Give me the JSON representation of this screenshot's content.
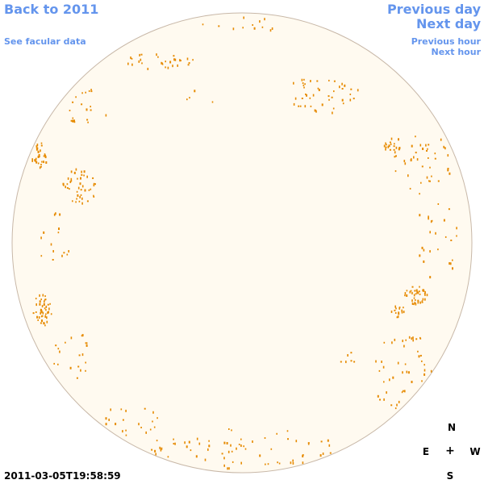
{
  "nav": {
    "back": "Back to 2011",
    "facular": "See facular data",
    "previous_day": "Previous day",
    "next_day": "Next day",
    "previous_hour": "Previous hour",
    "next_hour": "Next hour"
  },
  "compass": {
    "north": "N",
    "south": "S",
    "east": "E",
    "west": "W",
    "center": "+"
  },
  "timestamp": "2011-03-05T19:58:59",
  "colors": {
    "link": "#6495ed",
    "disk_fill": "#fffaf0",
    "disk_border": "#c8b8a8",
    "facula": "#e68a00"
  }
}
